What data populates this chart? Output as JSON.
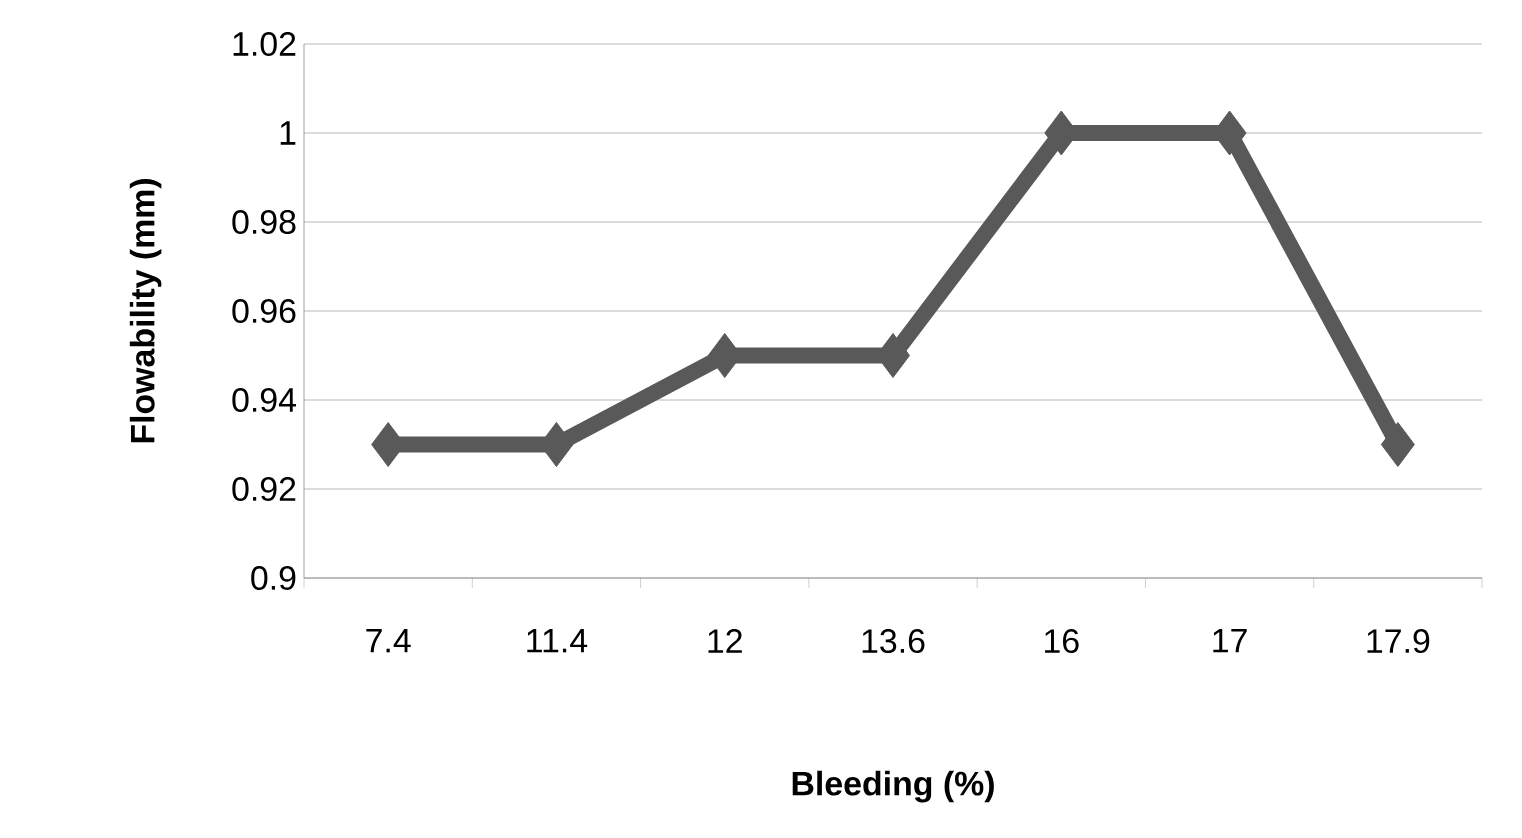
{
  "chart_data": {
    "type": "line",
    "xlabel": "Bleeding (%)",
    "ylabel": "Flowability (mm)",
    "categories": [
      "7.4",
      "11.4",
      "12",
      "13.6",
      "16",
      "17",
      "17.9"
    ],
    "values": [
      0.93,
      0.93,
      0.95,
      0.95,
      1,
      1,
      0.93
    ],
    "color": "#595959",
    "ylim": [
      0.9,
      1.02
    ],
    "yticks": [
      0.9,
      0.92,
      0.94,
      0.96,
      0.98,
      1,
      1.02
    ],
    "grid": "y",
    "marker": "diamond",
    "line_style": "solid"
  }
}
